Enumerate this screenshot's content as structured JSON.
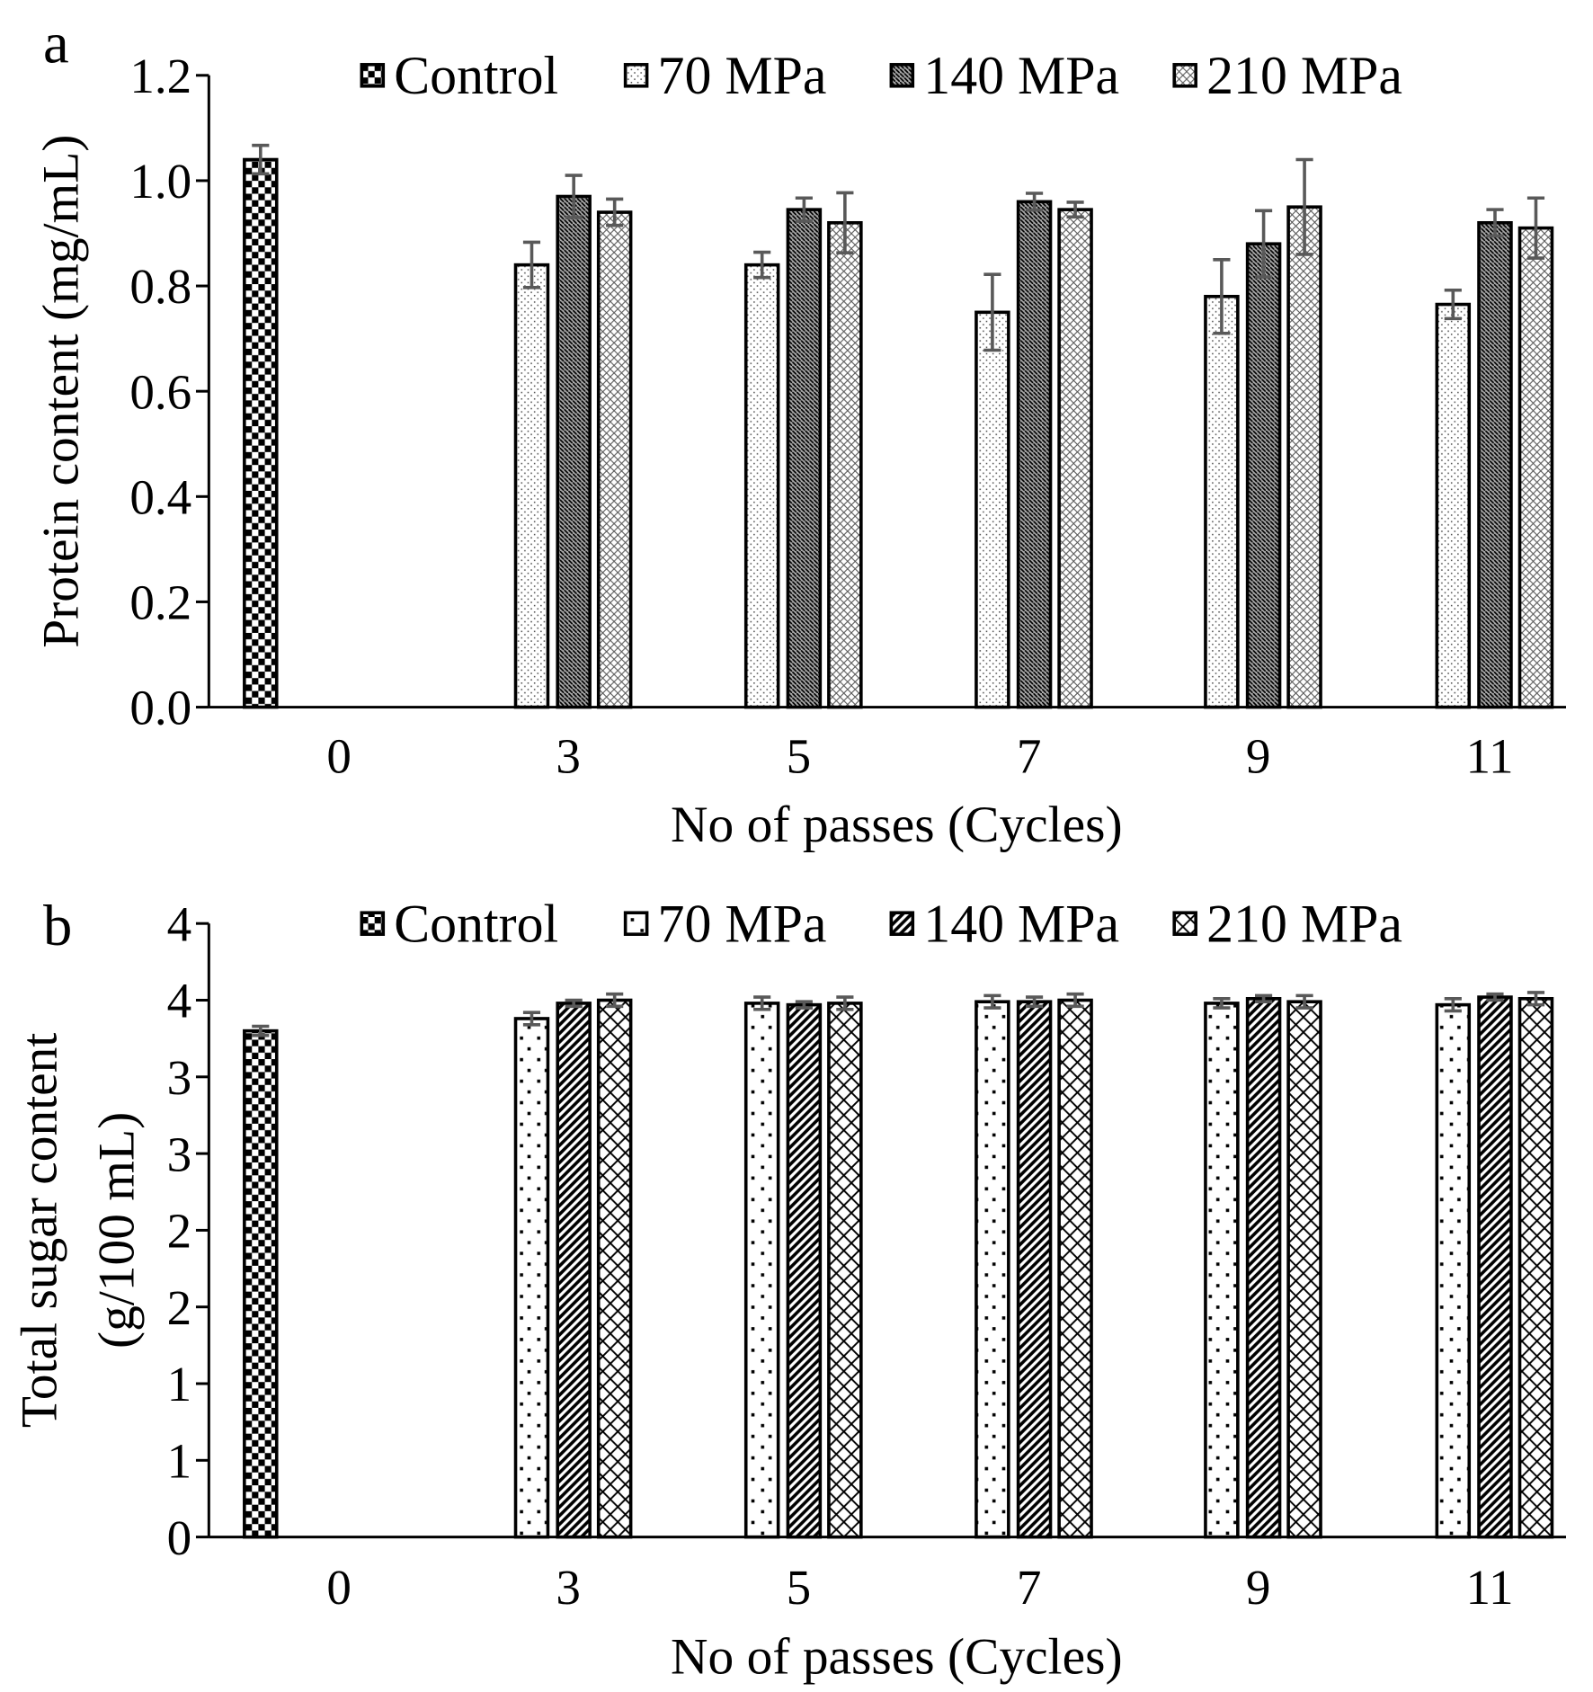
{
  "chart_data": [
    {
      "panel_label": "a",
      "type": "bar",
      "xlabel": "No of passes (Cycles)",
      "ylabel": "Protein content (mg/mL)",
      "ylabel_lines": [
        "Protein content (mg/mL)"
      ],
      "ylim": [
        0,
        1.2
      ],
      "yticks": [
        0,
        0.2,
        0.4,
        0.6,
        0.8,
        1.0,
        1.2
      ],
      "ytick_labels": [
        "0.0",
        "0.2",
        "0.4",
        "0.6",
        "0.8",
        "1.0",
        "1.2"
      ],
      "categories": [
        "0",
        "3",
        "5",
        "7",
        "9",
        "11"
      ],
      "legend_position": "top",
      "series": [
        {
          "name": "Control",
          "pattern": "checker",
          "values": [
            1.04,
            null,
            null,
            null,
            null,
            null
          ],
          "errors": [
            0.027,
            null,
            null,
            null,
            null,
            null
          ]
        },
        {
          "name": "70 MPa",
          "pattern": "fine-dots",
          "values": [
            null,
            0.84,
            0.84,
            0.75,
            0.78,
            0.765
          ],
          "errors": [
            null,
            0.043,
            0.024,
            0.072,
            0.07,
            0.027
          ]
        },
        {
          "name": "140 MPa",
          "pattern": "dense-diagonal",
          "values": [
            null,
            0.97,
            0.945,
            0.96,
            0.88,
            0.92
          ],
          "errors": [
            null,
            0.04,
            0.022,
            0.016,
            0.063,
            0.025
          ]
        },
        {
          "name": "210 MPa",
          "pattern": "fine-crosshatch",
          "values": [
            null,
            0.94,
            0.92,
            0.945,
            0.95,
            0.91
          ],
          "errors": [
            null,
            0.025,
            0.057,
            0.014,
            0.09,
            0.057
          ]
        }
      ]
    },
    {
      "panel_label": "b",
      "type": "bar",
      "xlabel": "No of passes (Cycles)",
      "ylabel": "Total sugar content (g/100 mL)",
      "ylabel_lines": [
        "Total sugar content",
        "(g/100 mL)"
      ],
      "ylim": [
        0,
        4
      ],
      "yticks": [
        0,
        0.5,
        1,
        1.5,
        2,
        2.5,
        3,
        3.5,
        4
      ],
      "ytick_labels": [
        "0",
        "1",
        "1",
        "2",
        "2",
        "3",
        "3",
        "4",
        "4"
      ],
      "categories": [
        "0",
        "3",
        "5",
        "7",
        "9",
        "11"
      ],
      "legend_position": "top",
      "series": [
        {
          "name": "Control",
          "pattern": "checker",
          "values": [
            3.3,
            null,
            null,
            null,
            null,
            null
          ],
          "errors": [
            0.03,
            null,
            null,
            null,
            null,
            null
          ]
        },
        {
          "name": "70 MPa",
          "pattern": "sparse-dots",
          "values": [
            null,
            3.38,
            3.48,
            3.49,
            3.48,
            3.47
          ],
          "errors": [
            null,
            0.04,
            0.04,
            0.04,
            0.03,
            0.04
          ]
        },
        {
          "name": "140 MPa",
          "pattern": "wide-diagonal",
          "values": [
            null,
            3.48,
            3.47,
            3.49,
            3.51,
            3.52
          ],
          "errors": [
            null,
            0.02,
            0.02,
            0.03,
            0.02,
            0.02
          ]
        },
        {
          "name": "210 MPa",
          "pattern": "x-hatch",
          "values": [
            null,
            3.5,
            3.48,
            3.5,
            3.49,
            3.51
          ],
          "errors": [
            null,
            0.04,
            0.04,
            0.04,
            0.04,
            0.04
          ]
        }
      ]
    }
  ],
  "colors": {
    "bar_outline": "#000000",
    "error_bar": "#595959",
    "axis": "#000000"
  }
}
